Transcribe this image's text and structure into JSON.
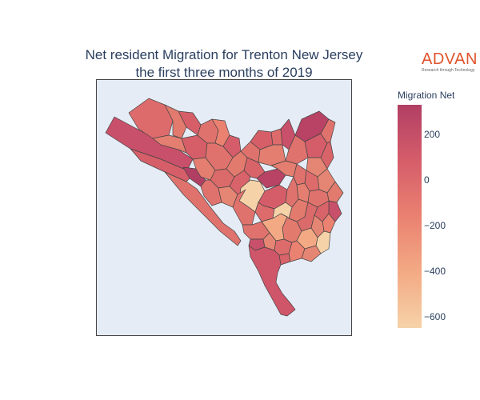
{
  "title": {
    "line1": "Net resident Migration for Trenton New Jersey",
    "line2": "the first three months of 2019"
  },
  "logo": {
    "word": "ADVAN",
    "tagline": "Research through Technology"
  },
  "colorbar": {
    "title": "Migration Net",
    "min": -650,
    "max": 330,
    "ticks": [
      {
        "value": 200,
        "label": "200"
      },
      {
        "value": 0,
        "label": "0"
      },
      {
        "value": -200,
        "label": "−200"
      },
      {
        "value": -400,
        "label": "−400"
      },
      {
        "value": -600,
        "label": "−600"
      }
    ]
  },
  "colors": {
    "map_bg": "#e5ecf6",
    "scale": [
      "#f6d2a9",
      "#f3aa84",
      "#ea8171",
      "#d55d6a",
      "#b13f64"
    ]
  }
}
